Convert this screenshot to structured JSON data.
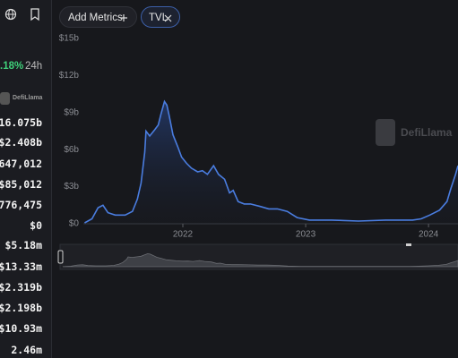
{
  "sidebar": {
    "change": ".18%",
    "period": "24h",
    "logo": "DefiLlama",
    "stats": [
      "16.075b",
      "$2.408b",
      "647,012",
      "$85,012",
      "776,475",
      "$0",
      "$5.18m",
      "$13.33m",
      "$2.319b",
      "$2.198b",
      "$10.93m",
      "2.46m"
    ]
  },
  "toolbar": {
    "add_metrics": "Add Metrics",
    "metric": "TVL"
  },
  "watermark": "DefiLlama",
  "chart_data": {
    "type": "line",
    "area": true,
    "color": "#4a7de0",
    "x": [
      2021.2,
      2021.26,
      2021.31,
      2021.35,
      2021.39,
      2021.45,
      2021.53,
      2021.59,
      2021.63,
      2021.66,
      2021.69,
      2021.7,
      2021.73,
      2021.77,
      2021.8,
      2021.82,
      2021.85,
      2021.87,
      2021.89,
      2021.92,
      2021.96,
      2021.99,
      2022.03,
      2022.07,
      2022.12,
      2022.16,
      2022.2,
      2022.25,
      2022.29,
      2022.34,
      2022.38,
      2022.41,
      2022.45,
      2022.5,
      2022.55,
      2022.63,
      2022.7,
      2022.77,
      2022.85,
      2022.93,
      2023.03,
      2023.21,
      2023.43,
      2023.65,
      2023.87,
      2023.94,
      2024.01,
      2024.09,
      2024.15,
      2024.18,
      2024.22,
      2024.24
    ],
    "values": [
      0.07,
      0.4,
      1.3,
      1.5,
      0.9,
      0.7,
      0.7,
      1.0,
      2.0,
      3.3,
      5.8,
      7.5,
      7.1,
      7.6,
      8.0,
      8.8,
      9.9,
      9.6,
      8.7,
      7.2,
      6.2,
      5.4,
      4.9,
      4.5,
      4.2,
      4.3,
      4.0,
      4.7,
      4.0,
      3.6,
      2.5,
      2.7,
      1.8,
      1.6,
      1.6,
      1.4,
      1.2,
      1.2,
      1.0,
      0.5,
      0.3,
      0.3,
      0.22,
      0.3,
      0.3,
      0.4,
      0.7,
      1.1,
      1.8,
      2.8,
      4.0,
      4.7
    ],
    "xlim": [
      2021.19,
      2024.24
    ],
    "xticks": [
      2022,
      2023,
      2024
    ],
    "ylim": [
      0,
      15
    ],
    "yticks": [
      {
        "value": 0,
        "label": "$0"
      },
      {
        "value": 3,
        "label": "$3b"
      },
      {
        "value": 6,
        "label": "$6b"
      },
      {
        "value": 9,
        "label": "$9b"
      },
      {
        "value": 12,
        "label": "$12b"
      },
      {
        "value": 15,
        "label": "$15b"
      }
    ]
  }
}
